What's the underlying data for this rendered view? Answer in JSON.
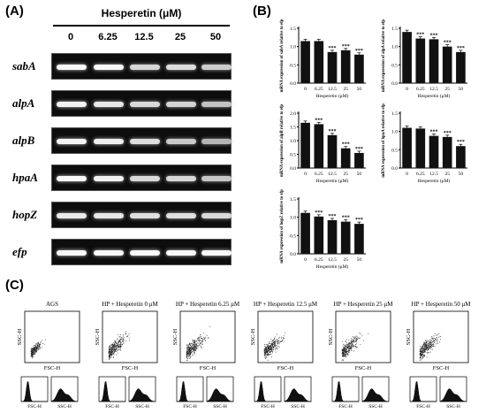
{
  "panels": {
    "a": "(A)",
    "b": "(B)",
    "c": "(C)"
  },
  "gel": {
    "header": "Hesperetin (μM)",
    "concentrations": [
      "0",
      "6.25",
      "12.5",
      "25",
      "50"
    ],
    "genes": [
      {
        "name": "sabA",
        "intensity": [
          0.95,
          0.95,
          0.7,
          0.75,
          0.62
        ]
      },
      {
        "name": "alpA",
        "intensity": [
          0.9,
          0.82,
          0.72,
          0.68,
          0.55
        ]
      },
      {
        "name": "alpB",
        "intensity": [
          0.92,
          0.88,
          0.75,
          0.6,
          0.45
        ]
      },
      {
        "name": "hpaA",
        "intensity": [
          0.95,
          0.9,
          0.72,
          0.7,
          0.58
        ]
      },
      {
        "name": "hopZ",
        "intensity": [
          0.85,
          0.82,
          0.76,
          0.76,
          0.72
        ]
      },
      {
        "name": "efp",
        "intensity": [
          0.95,
          0.95,
          0.95,
          0.95,
          0.95
        ]
      }
    ]
  },
  "chart_data": [
    {
      "type": "bar",
      "gene": "sabA",
      "ylabel": "mRNA expression of sabA relative to efp",
      "xlabel": "Hesperetin (μM)",
      "categories": [
        "0",
        "6.25",
        "12.5",
        "25",
        "50"
      ],
      "values": [
        1.15,
        1.15,
        0.85,
        0.9,
        0.78
      ],
      "ylim": [
        0,
        1.5
      ],
      "yticks": [
        "0.0",
        "0.5",
        "1.0",
        "1.5"
      ],
      "significance": [
        "",
        "",
        "***",
        "***",
        "***"
      ]
    },
    {
      "type": "bar",
      "gene": "alpA",
      "ylabel": "mRNA expression of alpA relative to efp",
      "xlabel": "Hesperetin (μM)",
      "categories": [
        "0",
        "6.25",
        "12.5",
        "25",
        "50"
      ],
      "values": [
        1.4,
        1.22,
        1.2,
        1.0,
        0.85
      ],
      "ylim": [
        0,
        1.5
      ],
      "yticks": [
        "0.0",
        "0.5",
        "1.0",
        "1.5"
      ],
      "significance": [
        "",
        "***",
        "***",
        "***",
        "***"
      ]
    },
    {
      "type": "bar",
      "gene": "alpB",
      "ylabel": "mRNA expression of alpB relative to efp",
      "xlabel": "Hesperetin (μM)",
      "categories": [
        "0",
        "6.25",
        "12.5",
        "25",
        "50"
      ],
      "values": [
        1.65,
        1.6,
        1.2,
        0.72,
        0.55
      ],
      "ylim": [
        0,
        2.0
      ],
      "yticks": [
        "0.0",
        "0.5",
        "1.0",
        "1.5",
        "2.0"
      ],
      "significance": [
        "",
        "***",
        "***",
        "***",
        "***"
      ]
    },
    {
      "type": "bar",
      "gene": "hpaA",
      "ylabel": "mRNA expression of hpaA relative to efp",
      "xlabel": "Hesperetin (μM)",
      "categories": [
        "0",
        "6.25",
        "12.5",
        "25",
        "50"
      ],
      "values": [
        1.1,
        1.08,
        0.88,
        0.85,
        0.6
      ],
      "ylim": [
        0,
        1.5
      ],
      "yticks": [
        "0.0",
        "0.5",
        "1.0",
        "1.5"
      ],
      "significance": [
        "",
        "",
        "***",
        "***",
        "***"
      ]
    },
    {
      "type": "bar",
      "gene": "hopZ",
      "ylabel": "mRNA expression of hopZ relative to efp",
      "xlabel": "Hesperetin (μM)",
      "categories": [
        "0",
        "6.25",
        "12.5",
        "25",
        "50"
      ],
      "values": [
        1.12,
        1.02,
        0.92,
        0.88,
        0.82
      ],
      "ylim": [
        0,
        1.5
      ],
      "yticks": [
        "0.0",
        "0.5",
        "1.0",
        "1.5"
      ],
      "significance": [
        "",
        "***",
        "***",
        "***",
        "***"
      ]
    }
  ],
  "flow": {
    "titles": [
      "AGS",
      "HP + Hesperetin 0 μM",
      "HP + Hesperetin 6.25 μM",
      "HP + Hesperetin 12.5 μM",
      "HP + Hesperetin 25 μM",
      "HP + Hesperetin 50 μM"
    ],
    "y_label": "SSC-H",
    "x_label": "FSC-H",
    "hist_labels": [
      "FSC-H",
      "SSC-H"
    ]
  }
}
